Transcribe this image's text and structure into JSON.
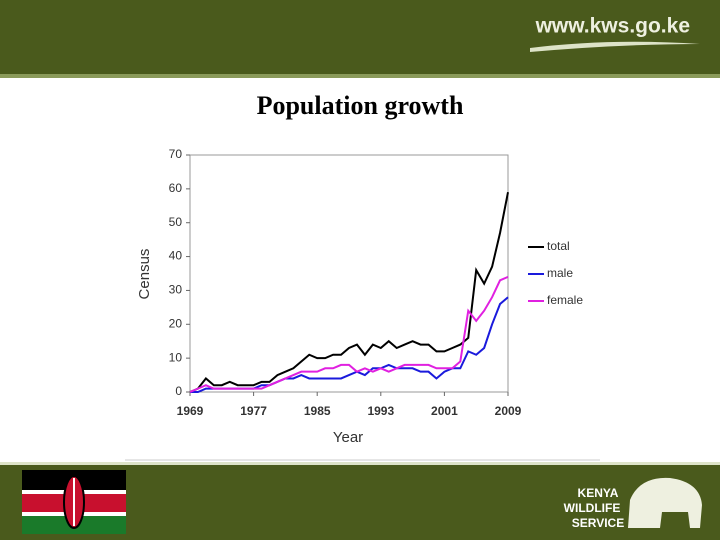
{
  "header": {
    "url": "www.kws.go.ke"
  },
  "chart_data": {
    "type": "line",
    "title": "Population growth",
    "x_label": "Year",
    "y_label": "Census",
    "x": [
      1969,
      1970,
      1971,
      1972,
      1973,
      1974,
      1975,
      1976,
      1977,
      1978,
      1979,
      1980,
      1981,
      1982,
      1983,
      1984,
      1985,
      1986,
      1987,
      1988,
      1989,
      1990,
      1991,
      1992,
      1993,
      1994,
      1995,
      1996,
      1997,
      1998,
      1999,
      2000,
      2001,
      2002,
      2003,
      2004,
      2005,
      2006,
      2007,
      2008,
      2009
    ],
    "series": [
      {
        "name": "total",
        "color": "#000000",
        "values": [
          0,
          1,
          4,
          2,
          2,
          3,
          2,
          2,
          2,
          3,
          3,
          5,
          6,
          7,
          9,
          11,
          10,
          10,
          11,
          11,
          13,
          14,
          11,
          14,
          13,
          15,
          13,
          14,
          15,
          14,
          14,
          12,
          12,
          13,
          14,
          16,
          36,
          32,
          37,
          47,
          59
        ]
      },
      {
        "name": "male",
        "color": "#1a1adc",
        "values": [
          0,
          0,
          1,
          1,
          1,
          1,
          1,
          1,
          1,
          2,
          2,
          3,
          4,
          4,
          5,
          4,
          4,
          4,
          4,
          4,
          5,
          6,
          5,
          7,
          7,
          8,
          7,
          7,
          7,
          6,
          6,
          4,
          6,
          7,
          7,
          12,
          11,
          13,
          20,
          26,
          28
        ]
      },
      {
        "name": "female",
        "color": "#e020e0",
        "values": [
          0,
          1,
          2,
          1,
          1,
          1,
          1,
          1,
          1,
          1,
          2,
          3,
          4,
          5,
          6,
          6,
          6,
          7,
          7,
          8,
          8,
          6,
          7,
          6,
          7,
          6,
          7,
          8,
          8,
          8,
          8,
          7,
          7,
          7,
          9,
          24,
          21,
          24,
          28,
          33,
          34
        ]
      }
    ],
    "xlim": [
      1969,
      2009
    ],
    "xticks": [
      1969,
      1977,
      1985,
      1993,
      2001,
      2009
    ],
    "ylim": [
      0,
      70
    ],
    "yticks": [
      0,
      10,
      20,
      30,
      40,
      50,
      60,
      70
    ],
    "legend": "right",
    "grid": false
  },
  "footer": {
    "logo_lines": [
      "KENYA",
      "WILDLIFE",
      "SERVICE"
    ]
  }
}
